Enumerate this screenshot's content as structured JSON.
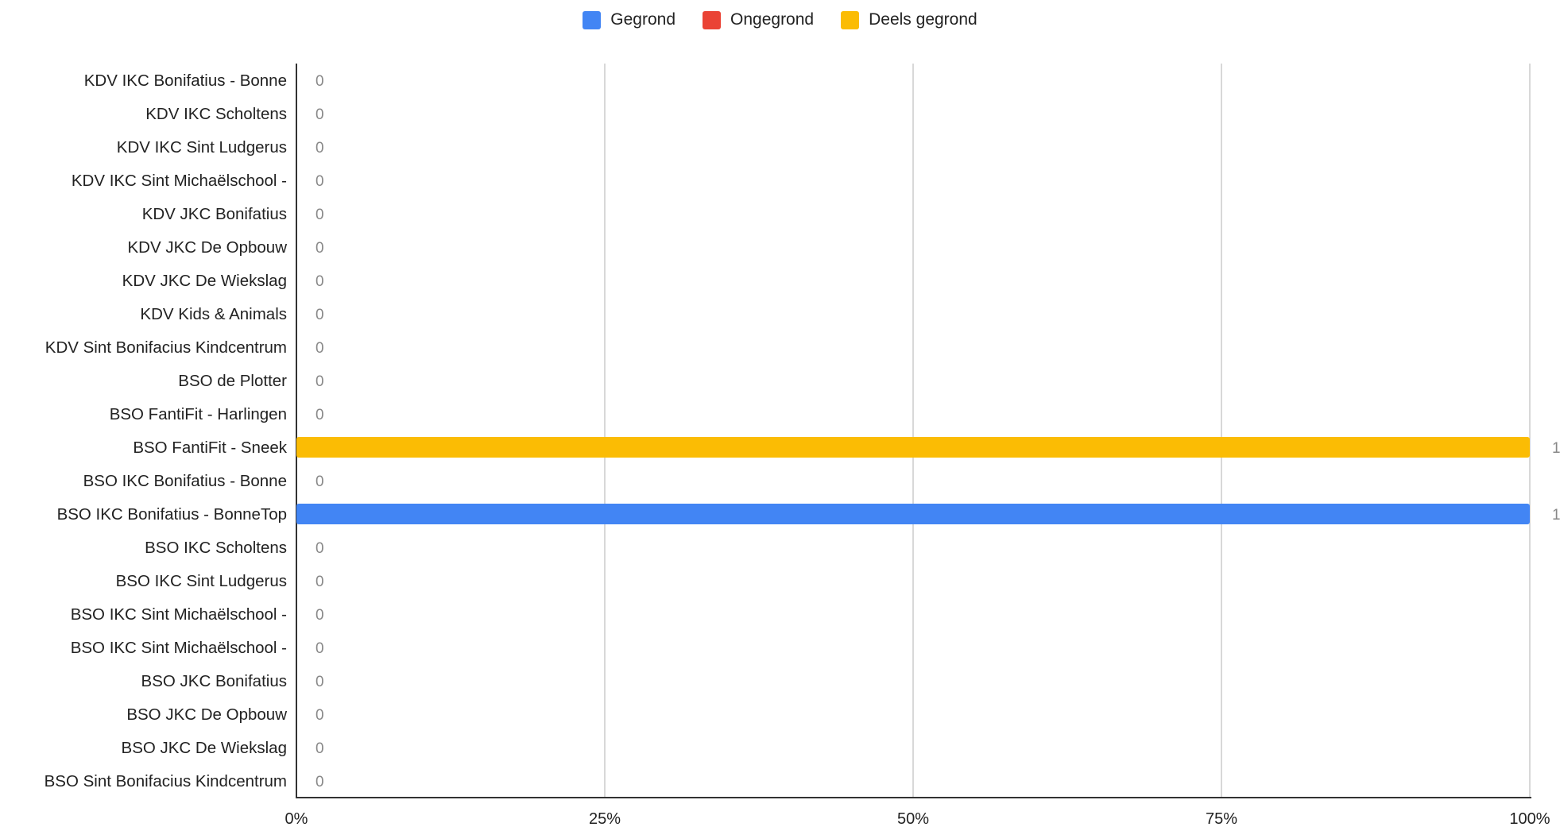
{
  "chart_data": {
    "type": "bar",
    "orientation": "horizontal",
    "stacked": "percent",
    "legend_position": "top",
    "grid": true,
    "xlim": [
      0,
      100
    ],
    "x_ticks": [
      "0%",
      "25%",
      "50%",
      "75%",
      "100%"
    ],
    "categories": [
      "KDV IKC Bonifatius - Bonne",
      "KDV IKC Scholtens",
      "KDV IKC Sint Ludgerus",
      "KDV IKC Sint Michaëlschool -",
      "KDV JKC Bonifatius",
      "KDV JKC De Opbouw",
      "KDV JKC De Wiekslag",
      "KDV Kids & Animals",
      "KDV Sint Bonifacius Kindcentrum",
      "BSO de Plotter",
      "BSO FantiFit - Harlingen",
      "BSO FantiFit - Sneek",
      "BSO IKC Bonifatius - Bonne",
      "BSO IKC Bonifatius - BonneTop",
      "BSO IKC Scholtens",
      "BSO IKC Sint Ludgerus",
      "BSO IKC Sint Michaëlschool -",
      "BSO IKC Sint Michaëlschool -",
      "BSO JKC Bonifatius",
      "BSO JKC De Opbouw",
      "BSO JKC De Wiekslag",
      "BSO Sint Bonifacius Kindcentrum"
    ],
    "series": [
      {
        "name": "Gegrond",
        "color": "#4285f4",
        "values": [
          0,
          0,
          0,
          0,
          0,
          0,
          0,
          0,
          0,
          0,
          0,
          0,
          0,
          1,
          0,
          0,
          0,
          0,
          0,
          0,
          0,
          0
        ]
      },
      {
        "name": "Ongegrond",
        "color": "#ea4335",
        "values": [
          0,
          0,
          0,
          0,
          0,
          0,
          0,
          0,
          0,
          0,
          0,
          0,
          0,
          0,
          0,
          0,
          0,
          0,
          0,
          0,
          0,
          0
        ]
      },
      {
        "name": "Deels gegrond",
        "color": "#fbbc04",
        "values": [
          0,
          0,
          0,
          0,
          0,
          0,
          0,
          0,
          0,
          0,
          0,
          1,
          0,
          0,
          0,
          0,
          0,
          0,
          0,
          0,
          0,
          0
        ]
      }
    ]
  }
}
